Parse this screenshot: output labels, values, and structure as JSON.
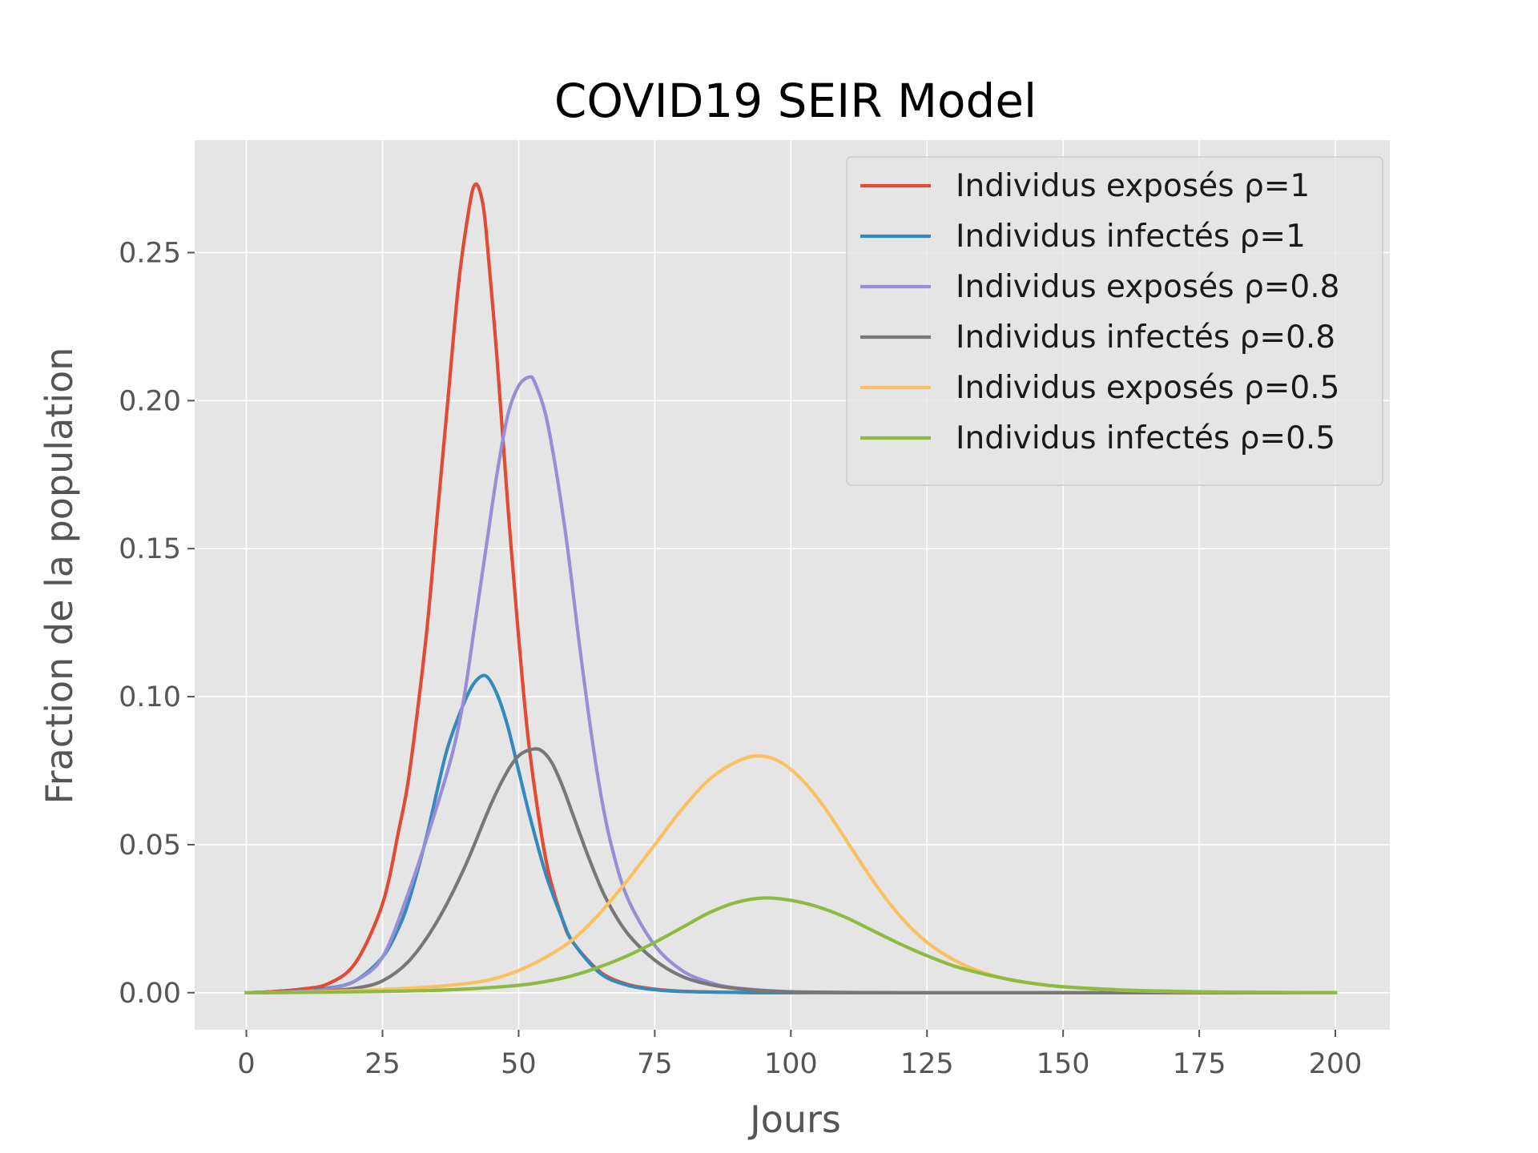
{
  "chart_data": {
    "type": "line",
    "title": "COVID19 SEIR Model",
    "xlabel": "Jours",
    "ylabel": "Fraction de la population",
    "xlim": [
      -9.5,
      210
    ],
    "ylim": [
      -0.0125,
      0.288
    ],
    "x_ticks": [
      0,
      25,
      50,
      75,
      100,
      125,
      150,
      175,
      200
    ],
    "x_tick_labels": [
      "0",
      "25",
      "50",
      "75",
      "100",
      "125",
      "150",
      "175",
      "200"
    ],
    "y_ticks": [
      0.0,
      0.05,
      0.1,
      0.15,
      0.2,
      0.25
    ],
    "y_tick_labels": [
      "0.00",
      "0.05",
      "0.10",
      "0.15",
      "0.20",
      "0.25"
    ],
    "grid": true,
    "legend_position": "top-right",
    "background_color": "#e5e5e5",
    "series": [
      {
        "name": "Individus exposés ρ=1",
        "color": "#e24a33",
        "points": [
          [
            0,
            0
          ],
          [
            5,
            0.0004
          ],
          [
            10,
            0.0012
          ],
          [
            15,
            0.003
          ],
          [
            20,
            0.01
          ],
          [
            25,
            0.03
          ],
          [
            28,
            0.055
          ],
          [
            30,
            0.075
          ],
          [
            33,
            0.12
          ],
          [
            35,
            0.16
          ],
          [
            37,
            0.2
          ],
          [
            39,
            0.24
          ],
          [
            41,
            0.266
          ],
          [
            42,
            0.273
          ],
          [
            43,
            0.27
          ],
          [
            44,
            0.258
          ],
          [
            46,
            0.215
          ],
          [
            48,
            0.165
          ],
          [
            50,
            0.12
          ],
          [
            52,
            0.082
          ],
          [
            55,
            0.045
          ],
          [
            58,
            0.025
          ],
          [
            60,
            0.017
          ],
          [
            65,
            0.007
          ],
          [
            70,
            0.0028
          ],
          [
            75,
            0.0012
          ],
          [
            80,
            0.0005
          ],
          [
            90,
            0.0001
          ],
          [
            100,
            0
          ],
          [
            150,
            0
          ],
          [
            200,
            0
          ]
        ]
      },
      {
        "name": "Individus infectés ρ=1",
        "color": "#348abd",
        "points": [
          [
            0,
            0
          ],
          [
            10,
            0.0005
          ],
          [
            15,
            0.0015
          ],
          [
            20,
            0.004
          ],
          [
            25,
            0.012
          ],
          [
            28,
            0.022
          ],
          [
            30,
            0.032
          ],
          [
            33,
            0.052
          ],
          [
            35,
            0.068
          ],
          [
            37,
            0.083
          ],
          [
            40,
            0.098
          ],
          [
            42,
            0.105
          ],
          [
            44,
            0.107
          ],
          [
            46,
            0.101
          ],
          [
            48,
            0.09
          ],
          [
            50,
            0.075
          ],
          [
            52,
            0.06
          ],
          [
            55,
            0.04
          ],
          [
            58,
            0.025
          ],
          [
            60,
            0.017
          ],
          [
            65,
            0.0065
          ],
          [
            70,
            0.0025
          ],
          [
            75,
            0.001
          ],
          [
            80,
            0.0004
          ],
          [
            90,
            0.0001
          ],
          [
            100,
            0
          ],
          [
            150,
            0
          ],
          [
            200,
            0
          ]
        ]
      },
      {
        "name": "Individus exposés ρ=0.8",
        "color": "#988ed5",
        "points": [
          [
            0,
            0
          ],
          [
            10,
            0.0004
          ],
          [
            15,
            0.0012
          ],
          [
            20,
            0.004
          ],
          [
            25,
            0.012
          ],
          [
            30,
            0.035
          ],
          [
            35,
            0.063
          ],
          [
            38,
            0.082
          ],
          [
            40,
            0.1
          ],
          [
            42,
            0.125
          ],
          [
            44,
            0.15
          ],
          [
            46,
            0.175
          ],
          [
            48,
            0.195
          ],
          [
            50,
            0.205
          ],
          [
            52,
            0.208
          ],
          [
            53,
            0.206
          ],
          [
            55,
            0.195
          ],
          [
            57,
            0.175
          ],
          [
            59,
            0.15
          ],
          [
            61,
            0.12
          ],
          [
            63,
            0.092
          ],
          [
            65,
            0.068
          ],
          [
            67,
            0.05
          ],
          [
            70,
            0.032
          ],
          [
            75,
            0.016
          ],
          [
            80,
            0.0075
          ],
          [
            85,
            0.0035
          ],
          [
            90,
            0.0016
          ],
          [
            100,
            0.0003
          ],
          [
            110,
            0.0001
          ],
          [
            120,
            0
          ],
          [
            150,
            0
          ],
          [
            200,
            0
          ]
        ]
      },
      {
        "name": "Individus infectés ρ=0.8",
        "color": "#777777",
        "points": [
          [
            0,
            0
          ],
          [
            10,
            0.0002
          ],
          [
            15,
            0.0006
          ],
          [
            20,
            0.0015
          ],
          [
            25,
            0.004
          ],
          [
            30,
            0.011
          ],
          [
            35,
            0.024
          ],
          [
            40,
            0.042
          ],
          [
            45,
            0.064
          ],
          [
            48,
            0.075
          ],
          [
            50,
            0.08
          ],
          [
            52,
            0.082
          ],
          [
            54,
            0.082
          ],
          [
            56,
            0.078
          ],
          [
            58,
            0.07
          ],
          [
            60,
            0.06
          ],
          [
            63,
            0.045
          ],
          [
            66,
            0.032
          ],
          [
            70,
            0.02
          ],
          [
            75,
            0.011
          ],
          [
            80,
            0.0055
          ],
          [
            85,
            0.0028
          ],
          [
            90,
            0.0014
          ],
          [
            95,
            0.0007
          ],
          [
            100,
            0.0003
          ],
          [
            110,
            0.0001
          ],
          [
            120,
            0
          ],
          [
            150,
            0
          ],
          [
            200,
            0
          ]
        ]
      },
      {
        "name": "Individus exposés ρ=0.5",
        "color": "#fbc15e",
        "points": [
          [
            0,
            0
          ],
          [
            10,
            0.0002
          ],
          [
            20,
            0.0007
          ],
          [
            30,
            0.0015
          ],
          [
            40,
            0.003
          ],
          [
            45,
            0.0045
          ],
          [
            50,
            0.0075
          ],
          [
            55,
            0.012
          ],
          [
            60,
            0.018
          ],
          [
            65,
            0.027
          ],
          [
            70,
            0.038
          ],
          [
            75,
            0.05
          ],
          [
            80,
            0.062
          ],
          [
            85,
            0.072
          ],
          [
            90,
            0.078
          ],
          [
            94,
            0.08
          ],
          [
            98,
            0.078
          ],
          [
            102,
            0.072
          ],
          [
            106,
            0.063
          ],
          [
            110,
            0.052
          ],
          [
            115,
            0.038
          ],
          [
            120,
            0.026
          ],
          [
            125,
            0.017
          ],
          [
            130,
            0.011
          ],
          [
            135,
            0.007
          ],
          [
            140,
            0.0045
          ],
          [
            145,
            0.003
          ],
          [
            150,
            0.002
          ],
          [
            160,
            0.0009
          ],
          [
            170,
            0.0004
          ],
          [
            180,
            0.0002
          ],
          [
            200,
            0
          ]
        ]
      },
      {
        "name": "Individus infectés ρ=0.5",
        "color": "#8eba42",
        "points": [
          [
            0,
            0
          ],
          [
            10,
            0.0001
          ],
          [
            20,
            0.0003
          ],
          [
            30,
            0.0006
          ],
          [
            40,
            0.0012
          ],
          [
            50,
            0.0025
          ],
          [
            55,
            0.0038
          ],
          [
            60,
            0.0058
          ],
          [
            65,
            0.0088
          ],
          [
            70,
            0.0125
          ],
          [
            75,
            0.017
          ],
          [
            80,
            0.022
          ],
          [
            85,
            0.027
          ],
          [
            90,
            0.0305
          ],
          [
            95,
            0.032
          ],
          [
            100,
            0.0312
          ],
          [
            105,
            0.029
          ],
          [
            110,
            0.0255
          ],
          [
            115,
            0.021
          ],
          [
            120,
            0.0165
          ],
          [
            125,
            0.0125
          ],
          [
            130,
            0.009
          ],
          [
            135,
            0.0065
          ],
          [
            140,
            0.0045
          ],
          [
            145,
            0.003
          ],
          [
            150,
            0.002
          ],
          [
            160,
            0.001
          ],
          [
            170,
            0.0005
          ],
          [
            180,
            0.0002
          ],
          [
            200,
            0
          ]
        ]
      }
    ]
  }
}
